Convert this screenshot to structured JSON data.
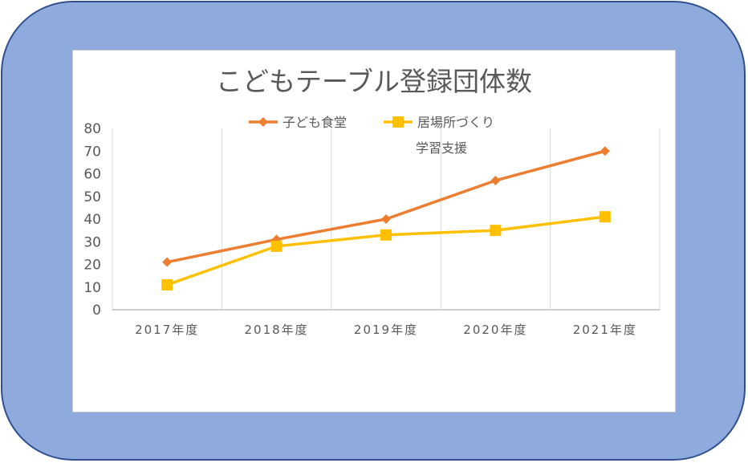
{
  "chart_data": {
    "type": "line",
    "title": "こどもテーブル登録団体数",
    "xlabel": "",
    "ylabel": "",
    "categories": [
      "2017年度",
      "2018年度",
      "2019年度",
      "2020年度",
      "2021年度"
    ],
    "ylim": [
      0,
      80
    ],
    "yticks": [
      0,
      10,
      20,
      30,
      40,
      50,
      60,
      70,
      80
    ],
    "grid": "vertical",
    "legend_position": "top",
    "series": [
      {
        "name": "子ども食堂",
        "values": [
          21,
          31,
          40,
          57,
          70
        ],
        "color": "#ed7d31",
        "marker": "diamond"
      },
      {
        "name": "居場所づくり学習支援",
        "name_lines": [
          "居場所づくり",
          "学習支援"
        ],
        "values": [
          11,
          28,
          33,
          35,
          41
        ],
        "color": "#ffc000",
        "marker": "square"
      }
    ]
  }
}
